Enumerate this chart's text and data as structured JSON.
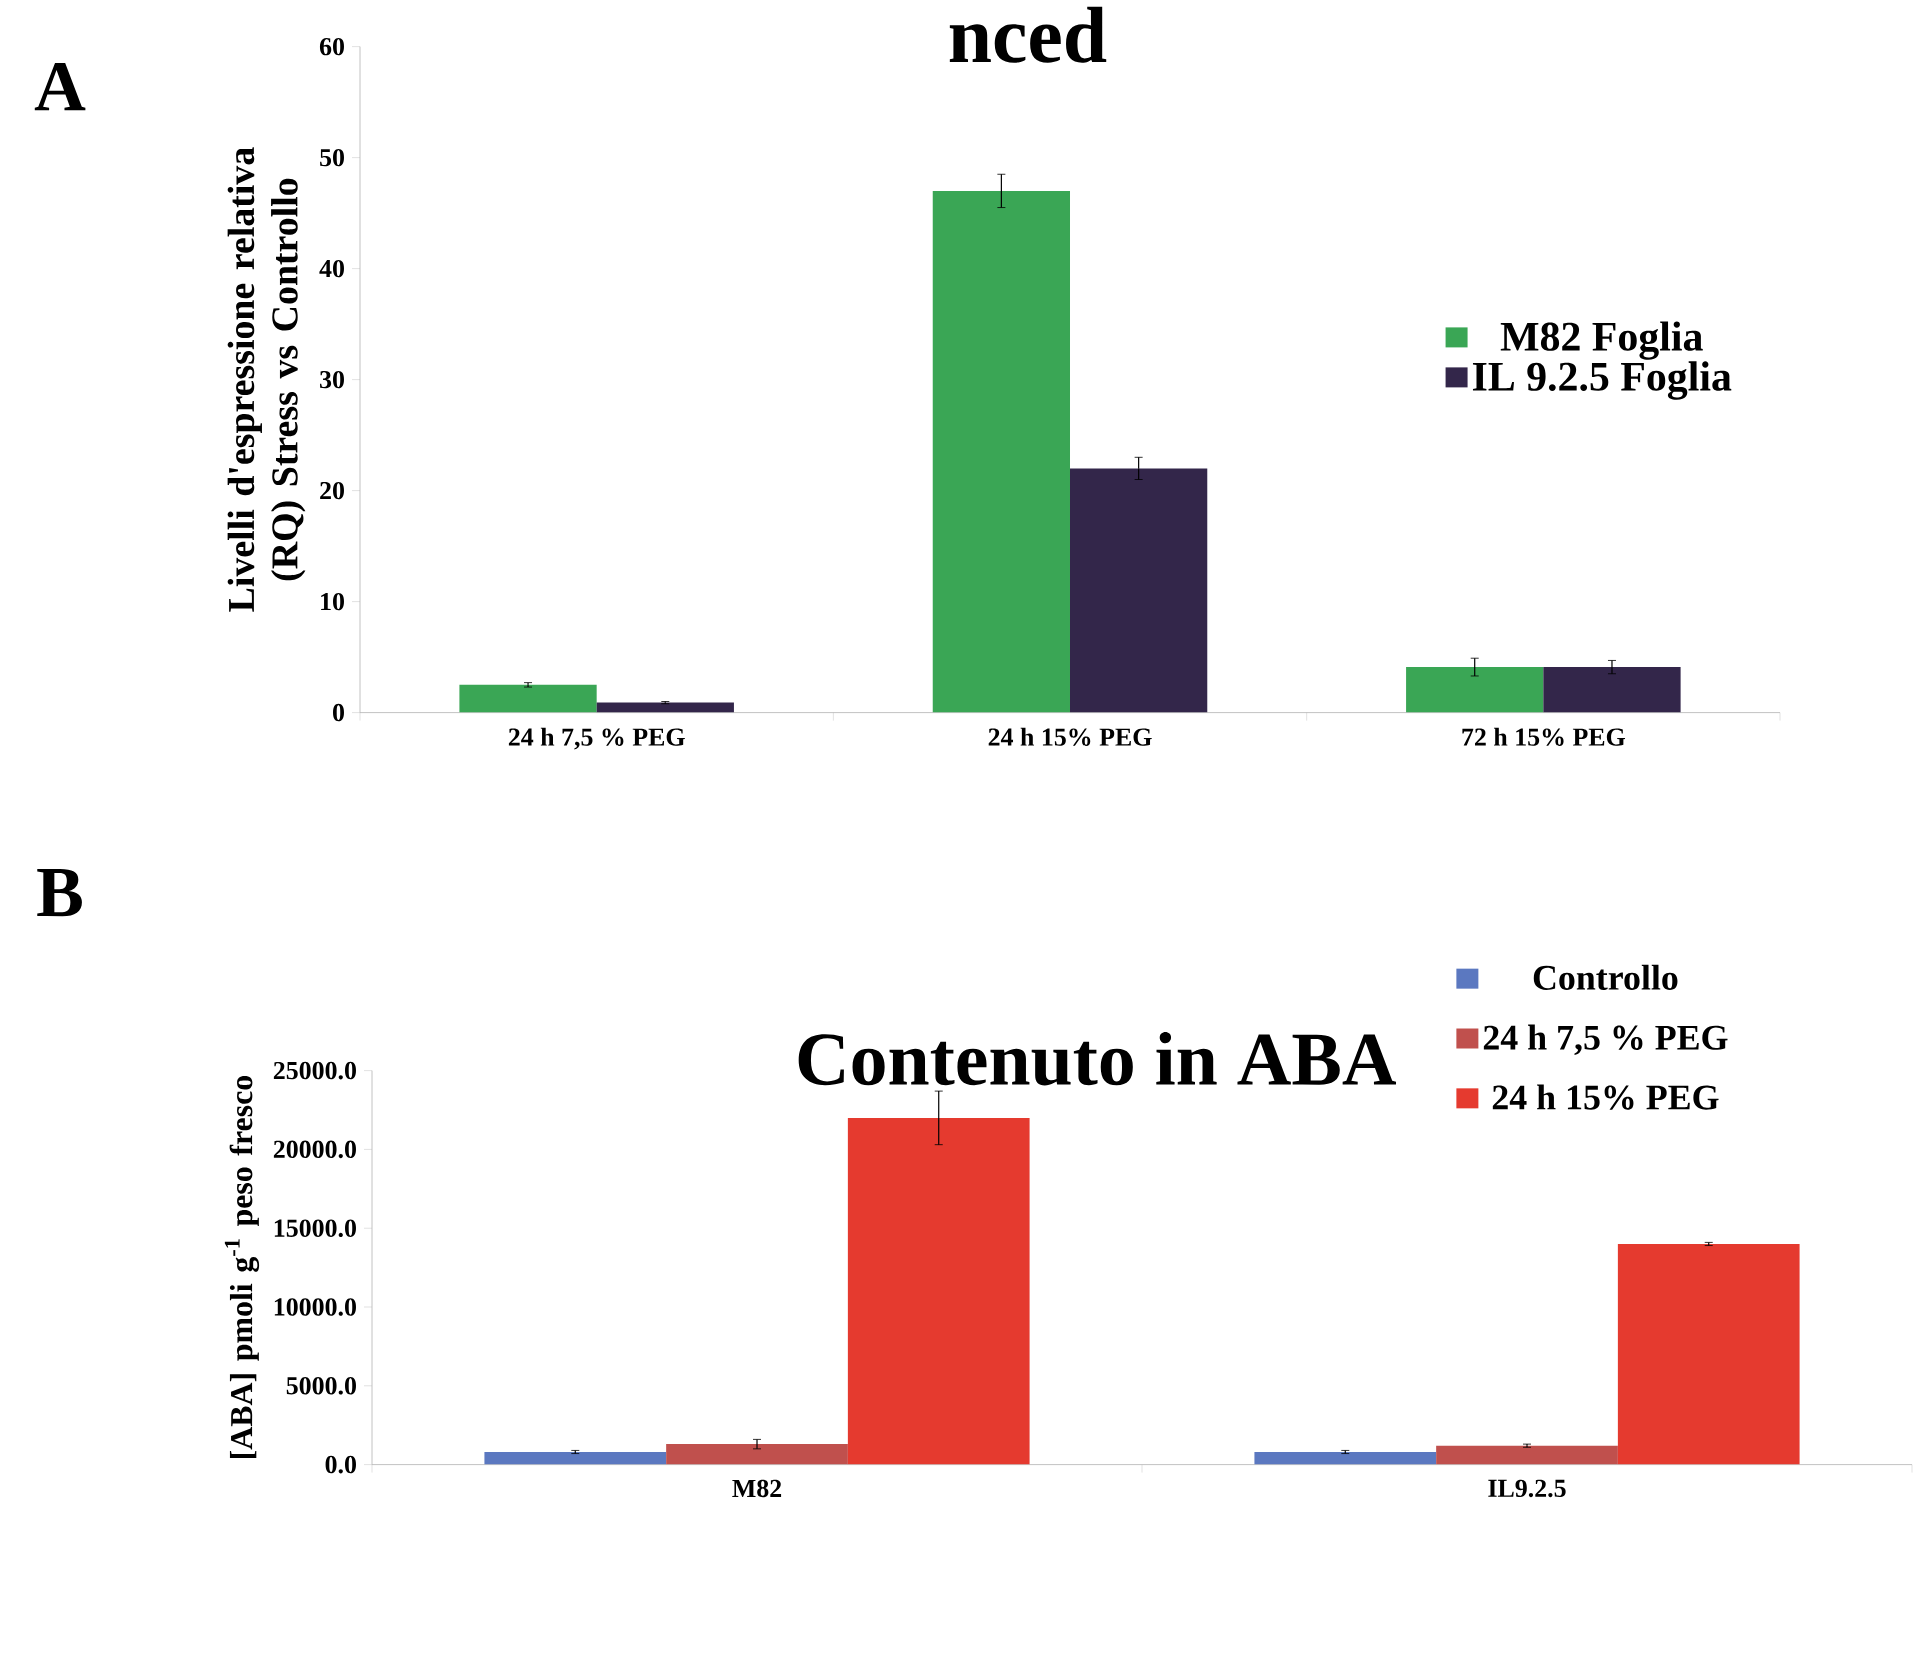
{
  "chart_data": [
    {
      "type": "bar",
      "title": "nced",
      "ylabel": "Livelli d'espressione relativa (RQ) Stress vs Controllo",
      "annotations": [
        "A"
      ],
      "categories": [
        "24 h 7,5 % PEG",
        "24 h 15% PEG",
        "72 h 15% PEG"
      ],
      "series": [
        {
          "name": "M82 Foglia",
          "color": "#3aa655",
          "values": [
            2.5,
            47.0,
            4.1
          ],
          "errors": [
            0.2,
            1.5,
            0.8
          ]
        },
        {
          "name": "IL 9.2.5 Foglia",
          "color": "#33264a",
          "values": [
            0.9,
            22.0,
            4.1
          ],
          "errors": [
            0.1,
            1.0,
            0.6
          ]
        }
      ],
      "ylim": [
        0,
        60
      ],
      "yticks": [
        0,
        10,
        20,
        30,
        40,
        50,
        60
      ],
      "legend": "right"
    },
    {
      "type": "bar",
      "title": "Contenuto in ABA",
      "ylabel": "[ABA] pmoli g$^{-1}$ peso fresco",
      "annotations": [
        "B"
      ],
      "categories": [
        "M82",
        "IL9.2.5"
      ],
      "series": [
        {
          "name": "Controllo",
          "color": "#5b78c0",
          "values": [
            800,
            800
          ],
          "errors": [
            100,
            100
          ]
        },
        {
          "name": "24 h 7,5 % PEG",
          "color": "#c0504d",
          "values": [
            1300,
            1200
          ],
          "errors": [
            300,
            100
          ]
        },
        {
          "name": "24 h 15% PEG",
          "color": "#e53a2f",
          "values": [
            22000,
            14000
          ],
          "errors": [
            1700,
            100
          ]
        }
      ],
      "ylim": [
        0,
        25000
      ],
      "yticks": [
        {
          "value": 0,
          "label": "0.0"
        },
        {
          "value": 5000,
          "label": "5000.0"
        },
        {
          "value": 10000,
          "label": "10000.0"
        },
        {
          "value": 15000,
          "label": "15000.0"
        },
        {
          "value": 20000,
          "label": "20000.0"
        },
        {
          "value": 25000,
          "label": "25000.0"
        }
      ],
      "legend": "top right"
    }
  ]
}
